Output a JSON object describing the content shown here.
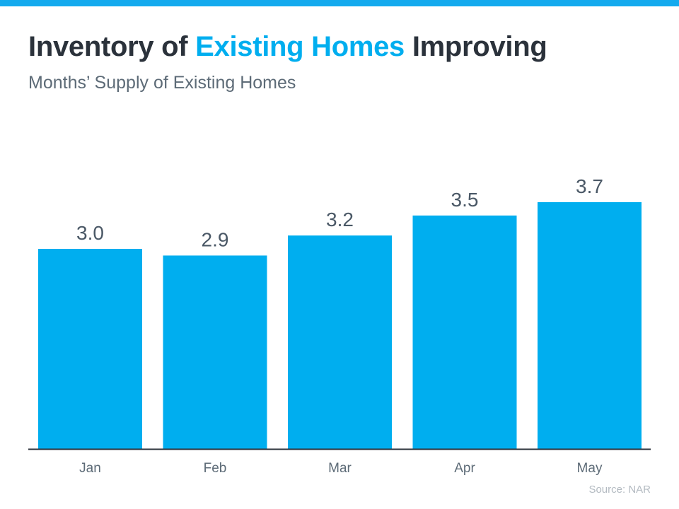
{
  "header": {
    "title_part1": "Inventory of ",
    "title_highlight": "Existing Homes",
    "title_part2": " Improving",
    "subtitle": "Months’ Supply of Existing Homes"
  },
  "source": "Source: NAR",
  "colors": {
    "accent": "#00aeef",
    "bar": "#00aeef",
    "title": "#2b323b",
    "axis": "#2b323b"
  },
  "chart_data": {
    "type": "bar",
    "title": "Inventory of Existing Homes Improving",
    "subtitle": "Months’ Supply of Existing Homes",
    "categories": [
      "Jan",
      "Feb",
      "Mar",
      "Apr",
      "May"
    ],
    "values": [
      3.0,
      2.9,
      3.2,
      3.5,
      3.7
    ],
    "data_labels": [
      "3.0",
      "2.9",
      "3.2",
      "3.5",
      "3.7"
    ],
    "xlabel": "",
    "ylabel": "",
    "ylim": [
      0,
      4.0
    ],
    "grid": false,
    "legend": "none"
  }
}
